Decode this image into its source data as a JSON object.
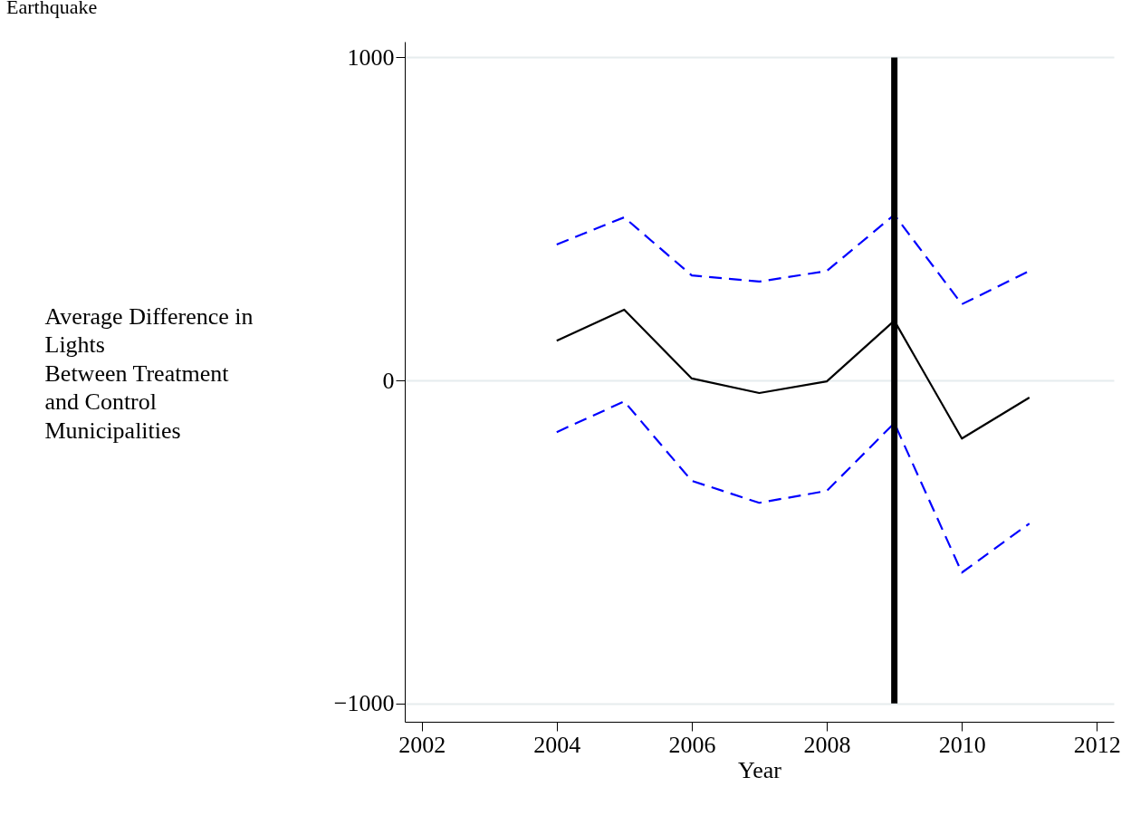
{
  "chart_data": {
    "type": "line",
    "title": "Earthquake",
    "xlabel": "Year",
    "ylabel": "Average Difference in\nLights\nBetween Treatment\nand Control\nMunicipalities",
    "x": [
      2004,
      2005,
      2006,
      2007,
      2008,
      2009,
      2010,
      2011
    ],
    "series": [
      {
        "color": "#000000",
        "line_style": "solid",
        "values": [
          123,
          219,
          6,
          -39,
          -3,
          185,
          -180,
          -53
        ]
      },
      {
        "color": "#0000ff",
        "line_style": "dashed",
        "values": [
          421,
          505,
          325,
          306,
          339,
          513,
          236,
          339
        ]
      },
      {
        "color": "#0000ff",
        "line_style": "dashed",
        "values": [
          -160,
          -65,
          -311,
          -379,
          -342,
          -132,
          -595,
          -443
        ]
      }
    ],
    "xlim": [
      2001.75,
      2012.25
    ],
    "xticks": [
      2002,
      2004,
      2006,
      2008,
      2010,
      2012
    ],
    "ylim": [
      -1057,
      1049
    ],
    "yticks": [
      -1000,
      0,
      1000
    ],
    "grid": "y",
    "marker": "none",
    "ref_lines": [
      {
        "axis": "x",
        "value": 2009,
        "color": "#000000"
      }
    ]
  }
}
